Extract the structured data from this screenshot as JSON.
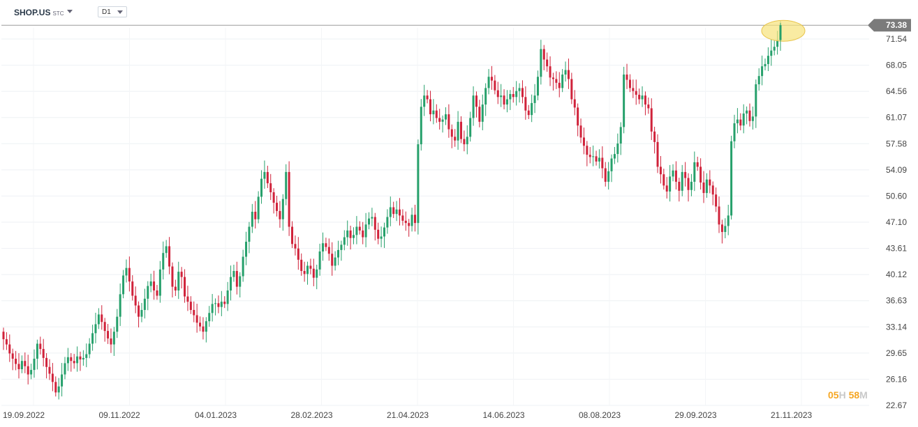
{
  "header": {
    "symbol": "SHOP.US",
    "symbol_type": "STC",
    "interval": "D1"
  },
  "countdown": {
    "hours": "05",
    "hours_unit": "H",
    "minutes": "58",
    "minutes_unit": "M"
  },
  "colors": {
    "up": "#26a06b",
    "down": "#d0223a",
    "price_label_bg": "#7b7b7b",
    "highlight": "#f7e27a"
  },
  "chart_data": {
    "type": "candlestick",
    "current_price": "73.38",
    "y_ticks": [
      "71.54",
      "68.05",
      "64.56",
      "61.07",
      "57.58",
      "54.09",
      "50.60",
      "47.10",
      "43.61",
      "40.12",
      "36.63",
      "33.14",
      "29.65",
      "26.16",
      "22.67"
    ],
    "ylim": [
      22.67,
      73.38
    ],
    "x_ticks": [
      "19.09.2022",
      "09.11.2022",
      "04.01.2023",
      "28.02.2023",
      "21.04.2023",
      "14.06.2023",
      "08.08.2023",
      "29.09.2023",
      "21.11.2023"
    ],
    "grid": true,
    "closes": [
      31.5,
      30.8,
      29.6,
      28.9,
      28.2,
      27.5,
      28.6,
      27.9,
      26.8,
      27.4,
      28.9,
      30.9,
      30.2,
      29.0,
      27.8,
      26.9,
      25.8,
      24.4,
      25.2,
      26.8,
      28.3,
      29.1,
      28.6,
      28.3,
      29.2,
      28.8,
      29.0,
      29.5,
      30.9,
      32.3,
      33.5,
      34.8,
      33.8,
      32.6,
      31.6,
      30.8,
      32.5,
      34.5,
      37.5,
      40.0,
      41.0,
      39.2,
      37.3,
      36.0,
      34.5,
      35.4,
      36.9,
      38.6,
      39.2,
      38.0,
      37.3,
      40.8,
      43.0,
      43.9,
      41.2,
      38.5,
      38.0,
      40.5,
      39.8,
      37.2,
      36.5,
      35.4,
      34.7,
      33.7,
      33.2,
      32.5,
      33.9,
      35.0,
      36.2,
      36.3,
      35.8,
      36.5,
      36.2,
      38.0,
      39.8,
      40.6,
      38.5,
      39.9,
      42.5,
      44.5,
      46.5,
      48.5,
      47.5,
      50.5,
      52.9,
      53.8,
      52.3,
      51.1,
      49.7,
      48.6,
      47.5,
      50.2,
      53.8,
      46.5,
      44.2,
      43.6,
      42.1,
      40.6,
      40.2,
      41.3,
      40.9,
      39.7,
      40.8,
      43.2,
      44.3,
      43.8,
      42.9,
      41.3,
      42.4,
      43.4,
      44.1,
      45.1,
      46.0,
      45.0,
      45.4,
      46.5,
      46.0,
      45.1,
      46.8,
      47.6,
      47.8,
      46.1,
      44.9,
      45.2,
      46.4,
      47.8,
      49.1,
      48.2,
      48.8,
      48.0,
      47.3,
      47.0,
      46.6,
      48.1,
      47.0,
      57.5,
      62.5,
      64.0,
      63.5,
      61.5,
      62.0,
      61.0,
      60.5,
      60.8,
      61.5,
      59.5,
      58.5,
      58.0,
      60.5,
      58.2,
      57.5,
      58.5,
      61.0,
      64.0,
      62.5,
      60.5,
      62.8,
      65.0,
      66.5,
      66.0,
      64.7,
      63.8,
      64.0,
      62.8,
      63.5,
      64.2,
      63.8,
      64.6,
      65.0,
      63.8,
      62.0,
      61.4,
      63.0,
      64.0,
      66.5,
      70.2,
      68.8,
      67.9,
      66.4,
      66.2,
      65.7,
      65.0,
      66.8,
      67.4,
      66.2,
      63.5,
      62.4,
      60.0,
      58.4,
      57.3,
      56.1,
      55.8,
      55.9,
      55.2,
      55.7,
      54.3,
      52.5,
      53.9,
      55.6,
      56.2,
      57.6,
      59.8,
      66.8,
      66.1,
      65.0,
      64.6,
      64.1,
      63.5,
      64.0,
      62.8,
      62.3,
      59.2,
      57.8,
      54.5,
      53.5,
      52.0,
      51.2,
      53.2,
      54.0,
      52.5,
      51.3,
      53.8,
      53.0,
      51.4,
      52.5,
      55.1,
      54.5,
      52.4,
      51.0,
      52.8,
      52.0,
      50.8,
      49.2,
      46.8,
      45.8,
      46.6,
      48.0,
      57.9,
      60.3,
      60.8,
      60.0,
      61.6,
      62.0,
      60.6,
      61.2,
      65.5,
      66.6,
      67.9,
      68.2,
      69.3,
      70.0,
      70.5,
      71.4,
      73.38
    ]
  }
}
